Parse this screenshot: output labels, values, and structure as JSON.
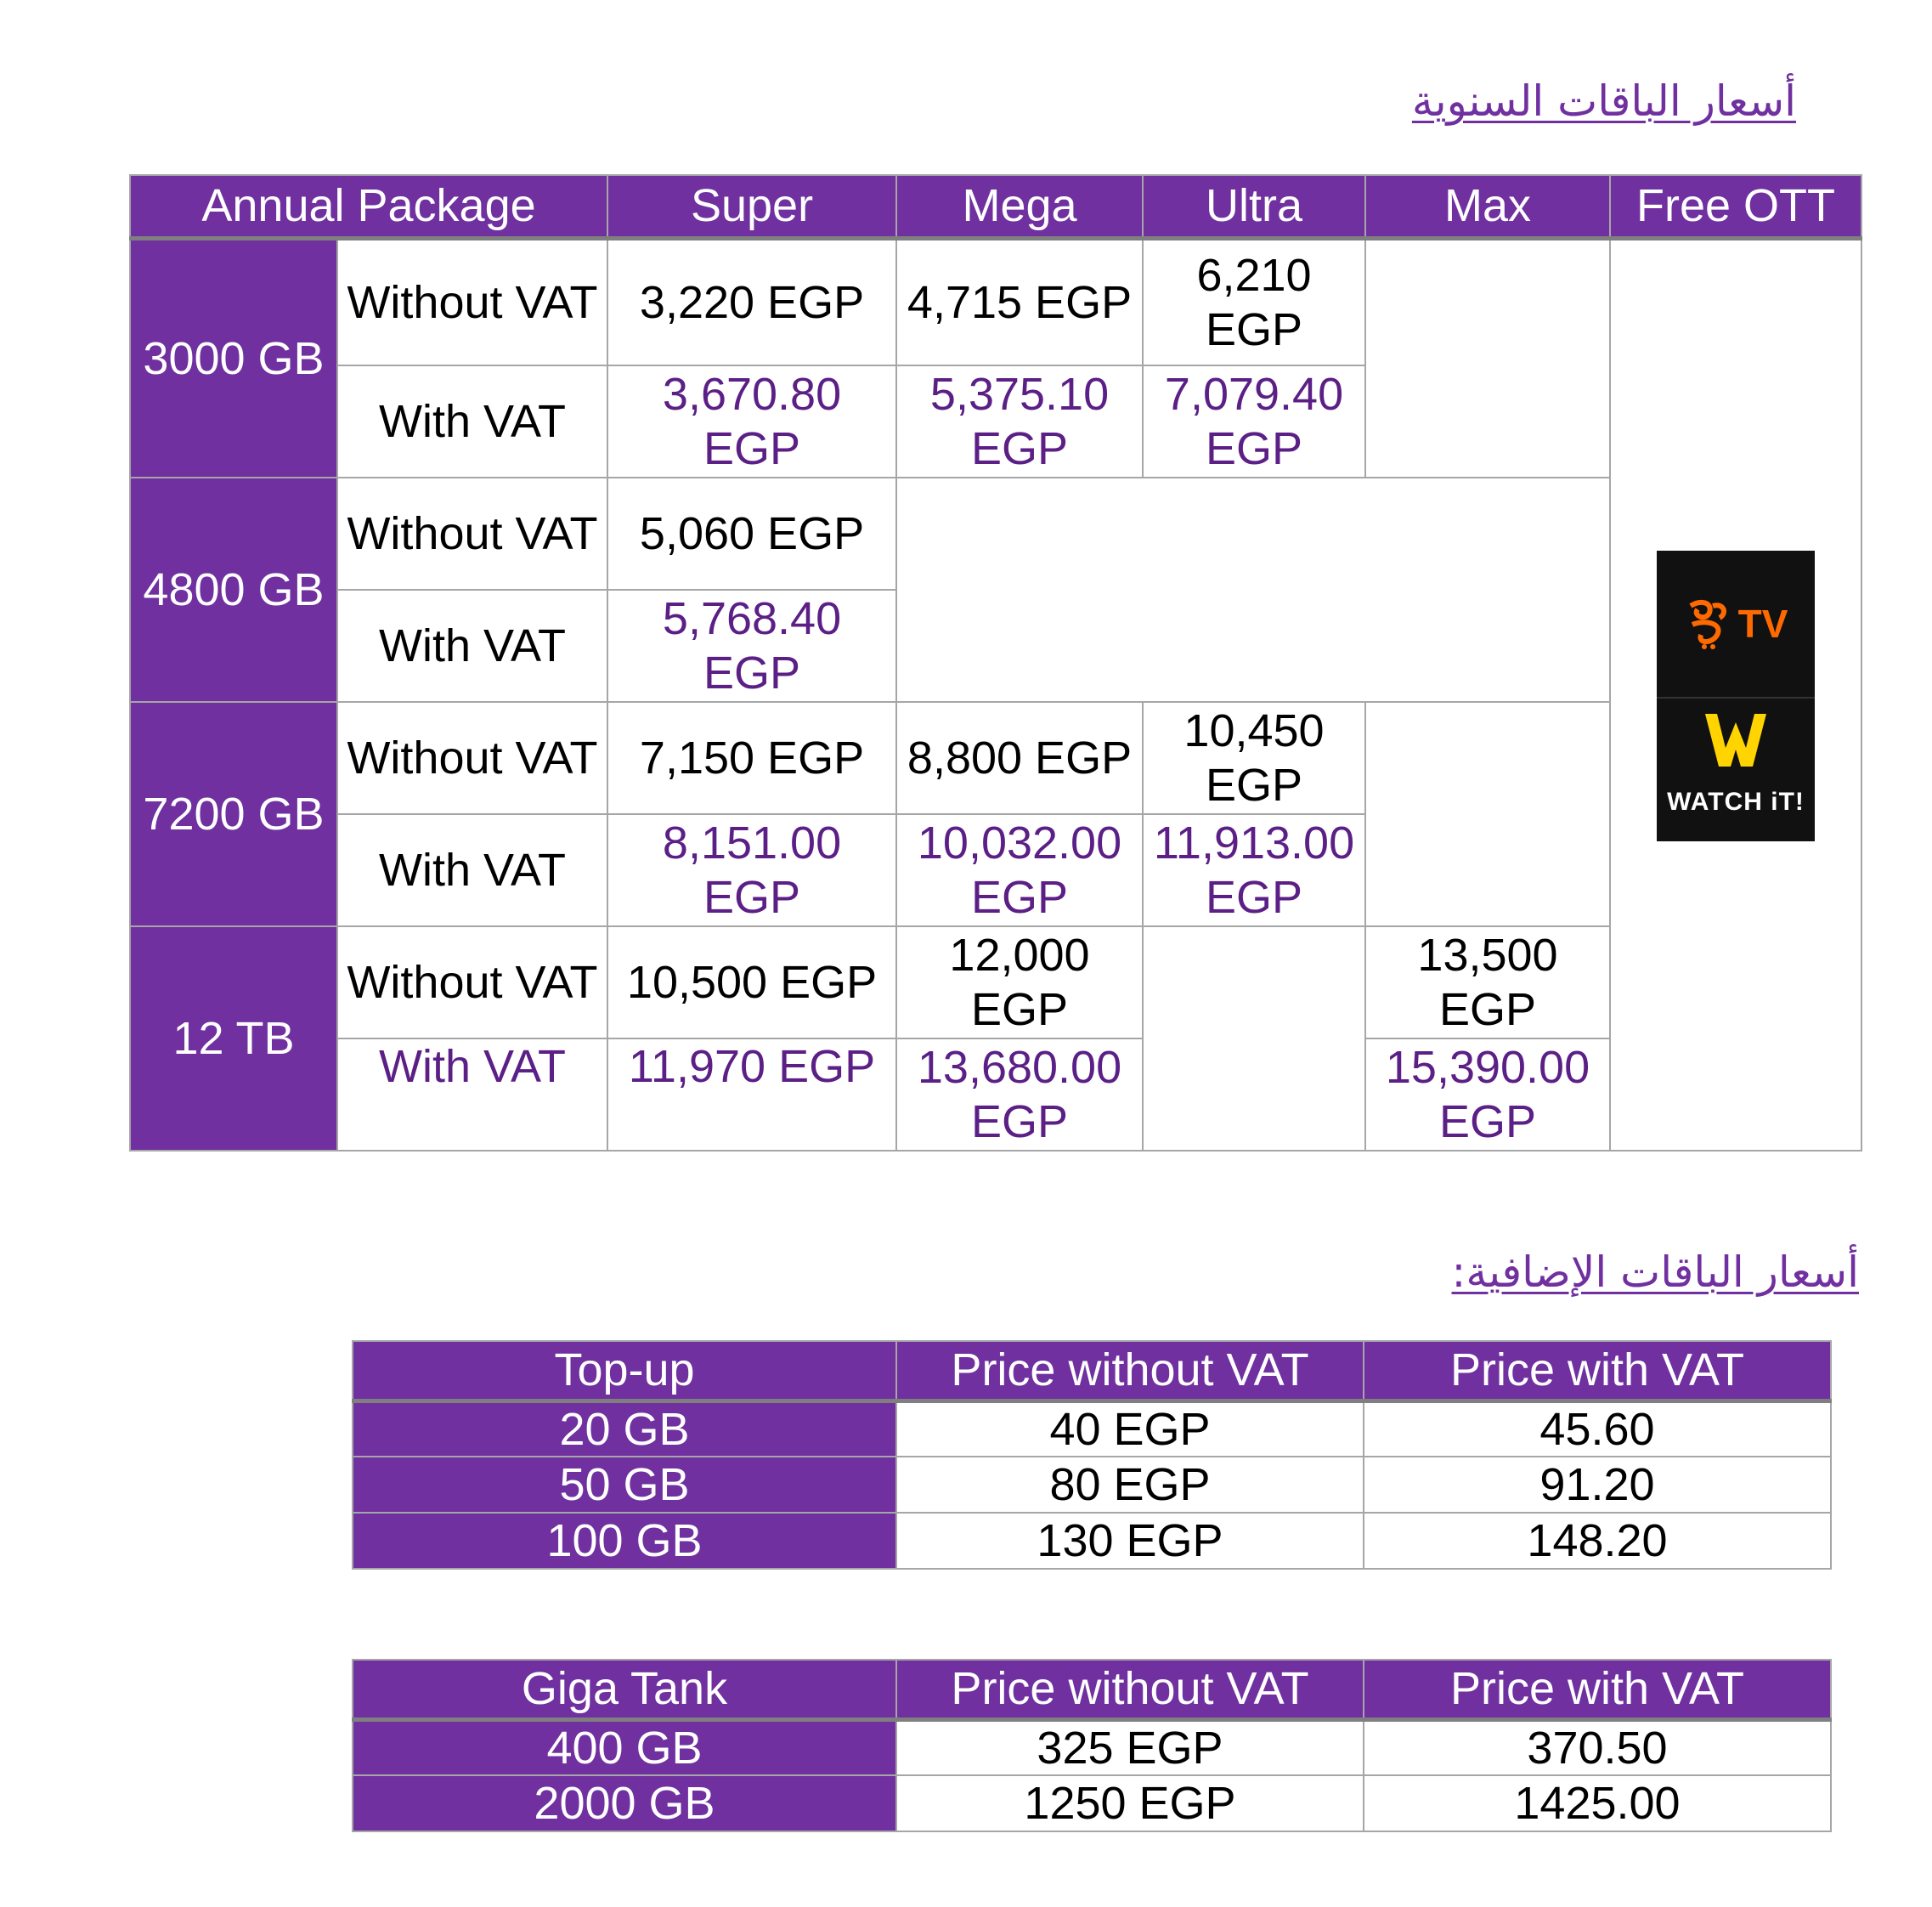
{
  "annual": {
    "heading": "أسعار الباقات السنوية",
    "headers": [
      "Annual Package",
      "Super",
      "Mega",
      "Ultra",
      "Max",
      "Free OTT"
    ],
    "rows": [
      {
        "size": "3000 GB",
        "without_label": "Without VAT",
        "with_label": "With VAT",
        "without": [
          "3,220 EGP",
          "4,715 EGP",
          "6,210 EGP"
        ],
        "with": [
          "3,670.80 EGP",
          "5,375.10 EGP",
          "7,079.40 EGP"
        ]
      },
      {
        "size": "4800 GB",
        "without_label": "Without VAT",
        "with_label": "With VAT",
        "without": [
          "5,060 EGP"
        ],
        "with": [
          "5,768.40 EGP"
        ]
      },
      {
        "size": "7200 GB",
        "without_label": "Without VAT",
        "with_label": "With VAT",
        "without": [
          "7,150 EGP",
          "8,800 EGP",
          "10,450 EGP"
        ],
        "with": [
          "8,151.00 EGP",
          "10,032.00 EGP",
          "11,913.00 EGP"
        ]
      },
      {
        "size": "12 TB",
        "without_label": "Without VAT",
        "with_label": "With VAT",
        "without": [
          "10,500 EGP",
          "12,000 EGP",
          "13,500 EGP"
        ],
        "with": [
          "11,970 EGP",
          "13,680.00 EGP",
          "15,390.00 EGP"
        ]
      }
    ],
    "ott": {
      "logo1_icon": "yanga-tv-logo-icon",
      "logo1_text": "TV",
      "logo2_icon": "watchit-logo-icon",
      "logo2_text": "WATCH iT!"
    }
  },
  "addons": {
    "heading": "أسعار الباقات الإضافية:",
    "topup": {
      "headers": [
        "Top-up",
        "Price without VAT",
        "Price with VAT"
      ],
      "rows": [
        [
          "20 GB",
          "40 EGP",
          "45.60"
        ],
        [
          "50 GB",
          "80 EGP",
          "91.20"
        ],
        [
          "100 GB",
          "130 EGP",
          "148.20"
        ]
      ]
    },
    "gigatank": {
      "headers": [
        "Giga Tank",
        "Price without VAT",
        "Price with VAT"
      ],
      "rows": [
        [
          "400 GB",
          "325 EGP",
          "370.50"
        ],
        [
          "2000 GB",
          "1250 EGP",
          "1425.00"
        ]
      ]
    }
  },
  "colors": {
    "purple": "#7030a0",
    "dark_purple_text": "#5b1f86",
    "border": "#a6a6a6"
  }
}
